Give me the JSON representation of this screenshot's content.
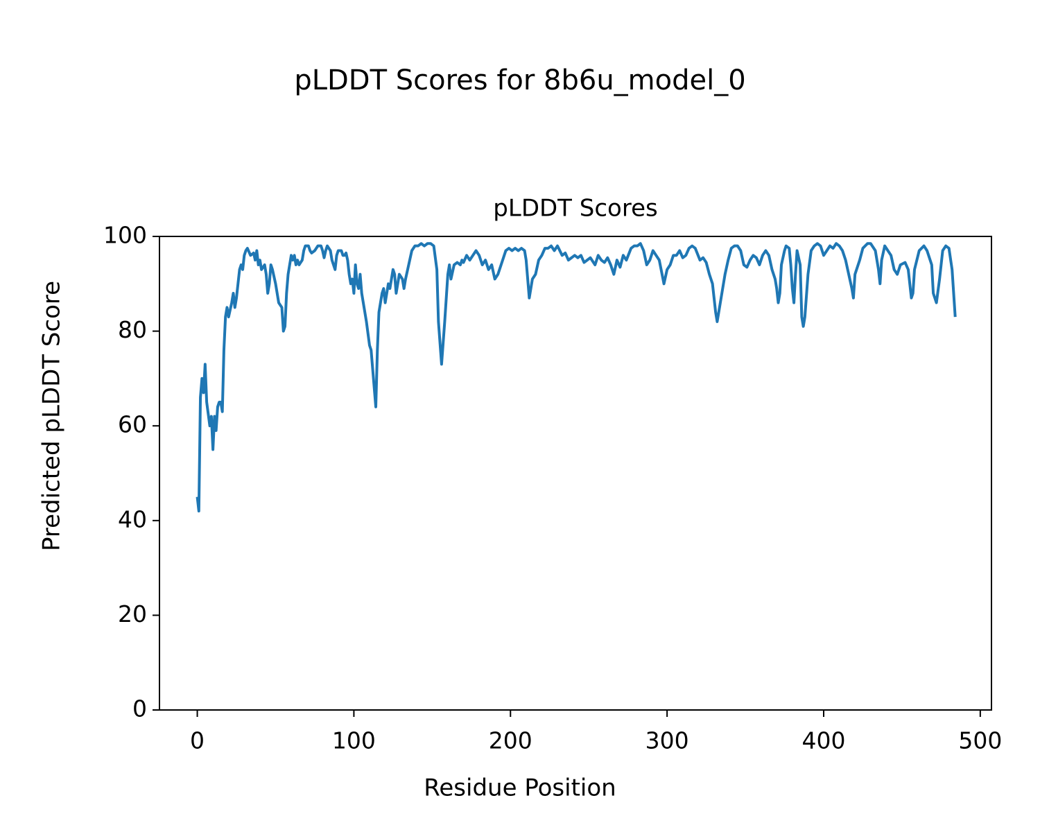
{
  "chart_data": {
    "type": "line",
    "title": "pLDDT Scores for 8b6u_model_0",
    "subtitle": "pLDDT Scores",
    "xlabel": "Residue Position",
    "ylabel": "Predicted pLDDT Score",
    "color": "#1f77b4",
    "xlim": [
      -24.15,
      507.15
    ],
    "ylim": [
      0,
      100
    ],
    "xticks": [
      0,
      100,
      200,
      300,
      400,
      500
    ],
    "yticks": [
      0,
      20,
      40,
      60,
      80,
      100
    ],
    "x": [
      0,
      1,
      2,
      3,
      4,
      5,
      6,
      8,
      9,
      10,
      11,
      12,
      13,
      14,
      15,
      16,
      17,
      18,
      19,
      20,
      22,
      23,
      24,
      25,
      26,
      27,
      28,
      29,
      30,
      31,
      32,
      34,
      36,
      37,
      38,
      39,
      40,
      41,
      43,
      44,
      45,
      46,
      47,
      48,
      50,
      52,
      54,
      55,
      56,
      57,
      58,
      59,
      60,
      61,
      62,
      63,
      64,
      65,
      67,
      68,
      69,
      71,
      72,
      73,
      75,
      77,
      79,
      80,
      81,
      82,
      83,
      85,
      86,
      88,
      89,
      90,
      92,
      93,
      94,
      95,
      96,
      97,
      98,
      99,
      100,
      101,
      102,
      103,
      104,
      105,
      106,
      108,
      110,
      111,
      112,
      114,
      115,
      116,
      117,
      118,
      119,
      120,
      121,
      122,
      123,
      124,
      125,
      126,
      127,
      128,
      129,
      131,
      132,
      133,
      135,
      137,
      139,
      141,
      143,
      145,
      147,
      149,
      151,
      153,
      154,
      156,
      158,
      160,
      161,
      162,
      164,
      166,
      168,
      169,
      170,
      172,
      174,
      176,
      178,
      180,
      182,
      184,
      186,
      188,
      190,
      192,
      194,
      196,
      197,
      199,
      201,
      203,
      205,
      207,
      209,
      210,
      212,
      214,
      216,
      218,
      220,
      222,
      224,
      226,
      228,
      230,
      233,
      235,
      237,
      239,
      241,
      243,
      245,
      247,
      249,
      251,
      254,
      256,
      258,
      260,
      262,
      264,
      266,
      268,
      270,
      272,
      274,
      277,
      279,
      281,
      283,
      285,
      287,
      289,
      291,
      293,
      295,
      298,
      300,
      302,
      304,
      306,
      308,
      310,
      312,
      314,
      316,
      318,
      321,
      323,
      325,
      327,
      329,
      331,
      332,
      333,
      335,
      337,
      339,
      341,
      343,
      345,
      347,
      349,
      351,
      353,
      355,
      357,
      359,
      361,
      363,
      365,
      367,
      369,
      370,
      371,
      372,
      373,
      375,
      376,
      378,
      379,
      380,
      381,
      382,
      383,
      385,
      386,
      387,
      388,
      390,
      392,
      394,
      396,
      398,
      400,
      402,
      404,
      406,
      408,
      410,
      412,
      414,
      416,
      418,
      419,
      420,
      423,
      425,
      428,
      430,
      433,
      435,
      436,
      437,
      439,
      441,
      443,
      445,
      447,
      449,
      452,
      454,
      456,
      457,
      458,
      461,
      464,
      466,
      469,
      470,
      472,
      474,
      476,
      478,
      480,
      482,
      484
    ],
    "values": [
      45,
      42,
      66,
      70,
      67,
      73,
      65,
      60,
      62,
      55,
      62,
      59,
      64,
      65,
      65,
      63,
      76,
      83,
      85,
      83,
      86,
      88,
      85,
      87,
      90,
      93,
      94,
      93,
      96,
      97,
      97.5,
      96,
      96.5,
      95,
      97,
      94,
      95,
      93,
      94,
      92,
      88,
      90,
      94,
      93,
      90,
      86,
      85,
      80,
      81,
      88,
      92,
      94,
      96,
      95,
      96,
      94,
      95,
      94,
      95,
      97,
      98,
      98,
      97,
      96.5,
      97,
      98,
      98,
      97,
      95.5,
      97,
      98,
      97,
      95,
      93,
      96,
      97,
      97,
      96,
      96,
      96.5,
      95,
      92,
      90,
      91,
      88,
      94,
      90,
      89,
      92,
      88,
      86,
      82,
      77,
      76,
      72,
      64,
      76,
      84,
      86,
      88,
      89,
      86,
      88,
      90,
      89,
      91,
      93,
      92,
      88,
      90,
      92,
      91,
      89,
      91,
      94,
      97,
      98,
      98,
      98.5,
      98,
      98.5,
      98.5,
      98,
      93,
      82,
      73,
      82,
      92,
      94,
      91,
      94,
      94.5,
      94,
      95,
      94.5,
      96,
      95,
      96,
      97,
      96,
      94,
      95,
      93,
      94,
      91,
      92,
      94,
      96,
      97,
      97.5,
      97,
      97.5,
      97,
      97.5,
      97,
      95,
      87,
      91,
      92,
      95,
      96,
      97.5,
      97.5,
      98,
      97,
      98,
      96,
      96.5,
      95,
      95.5,
      96,
      95.5,
      96,
      94.5,
      95,
      95.5,
      94,
      96,
      95,
      94.5,
      95.5,
      94,
      92,
      95,
      93.5,
      96,
      95,
      97.5,
      98,
      98,
      98.5,
      97,
      94,
      95,
      97,
      96,
      95,
      90,
      93,
      94,
      96,
      96,
      97,
      95.5,
      96,
      97.5,
      98,
      97.5,
      95,
      95.5,
      94.5,
      92,
      90,
      84,
      82,
      84,
      88,
      92,
      95,
      97.5,
      98,
      98,
      97,
      94,
      93.5,
      95,
      96,
      95.5,
      94,
      96,
      97,
      96,
      93,
      91,
      89,
      86,
      88,
      94,
      97,
      98,
      97.5,
      94,
      89,
      86,
      92,
      97,
      94,
      83,
      81,
      83,
      92,
      97,
      98,
      98.5,
      98,
      96,
      97,
      98,
      97.5,
      98.5,
      98,
      97,
      95,
      92,
      89,
      87,
      92,
      95,
      97.5,
      98.5,
      98.5,
      97,
      93,
      90,
      95,
      98,
      97,
      96,
      93,
      92,
      94,
      94.5,
      93,
      87,
      88,
      93,
      97,
      98,
      97,
      94,
      88,
      86,
      91,
      97,
      98,
      97.5,
      93,
      83
    ]
  }
}
